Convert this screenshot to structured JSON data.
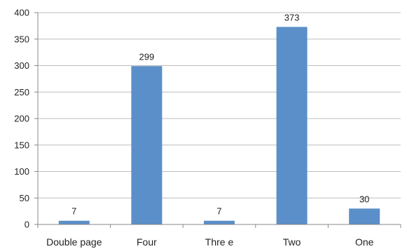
{
  "chart_data": {
    "type": "bar",
    "categories": [
      "Double page",
      "Four",
      "Thre e",
      "Two",
      "One"
    ],
    "values": [
      7,
      299,
      7,
      373,
      30
    ],
    "data_labels": [
      "7",
      "299",
      "7",
      "373",
      "30"
    ],
    "ylim": [
      0,
      400
    ],
    "yticks": [
      0,
      50,
      100,
      150,
      200,
      250,
      300,
      350,
      400
    ],
    "grid": "horizontal",
    "legend": "none",
    "bar_color": "#5B8FC9"
  }
}
